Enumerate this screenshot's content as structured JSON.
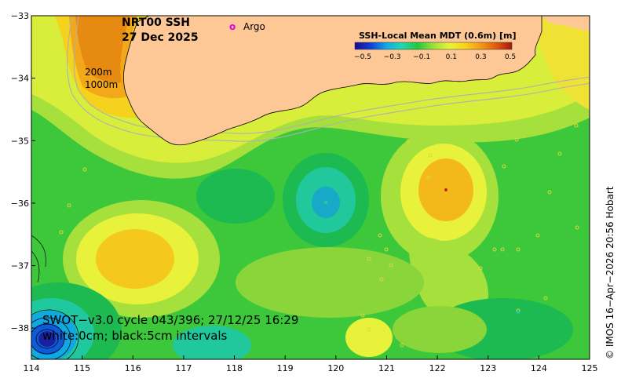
{
  "title": {
    "product": "NRT00 SSH",
    "date": "27 Dec 2025"
  },
  "legend": {
    "argo_symbol": "o",
    "argo_label": "Argo"
  },
  "colorbar": {
    "title": "SSH-Local Mean MDT (0.6m) [m]",
    "ticks": [
      "−0.5",
      "−0.3",
      "−0.1",
      "0.1",
      "0.3",
      "0.5"
    ],
    "colors": [
      "#1a0a8c",
      "#0e3fd6",
      "#10a8e8",
      "#20d8b0",
      "#22c83c",
      "#9ee03a",
      "#e8f23a",
      "#f7d21e",
      "#f39a14",
      "#e05a0c",
      "#a8160a"
    ]
  },
  "axes": {
    "x_ticks": [
      "114",
      "115",
      "116",
      "117",
      "118",
      "119",
      "120",
      "121",
      "122",
      "123",
      "124",
      "125"
    ],
    "y_ticks": [
      "−33",
      "−34",
      "−35",
      "−36",
      "−37",
      "−38"
    ],
    "x_range": [
      114,
      125
    ],
    "y_range": [
      -38.5,
      -33
    ]
  },
  "contours": {
    "label_200": "200m",
    "label_1000": "1000m"
  },
  "swot": {
    "line1": "SWOT−v3.0 cycle 043/396; 27/12/25 16:29",
    "line2": "white:0cm; black:5cm intervals"
  },
  "credit": "© IMOS 16−Apr−2026 20:56 Hobart",
  "colors": {
    "land": "#fdc896",
    "argo": "#e000e0",
    "bathymetry": "#b0b0b0"
  }
}
